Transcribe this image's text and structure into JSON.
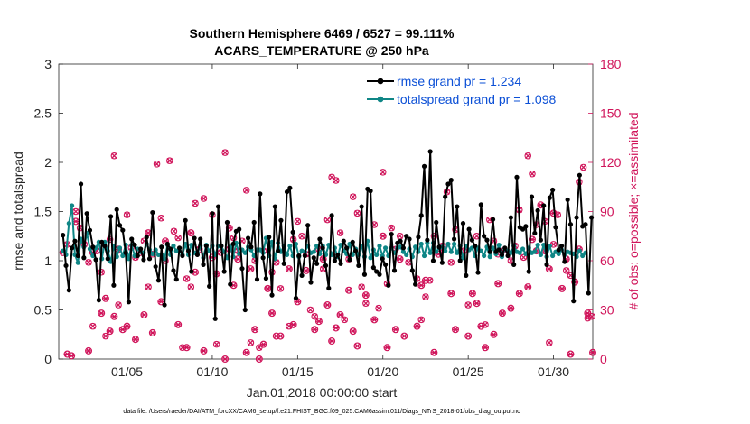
{
  "chart_data": {
    "type": "line",
    "title": [
      "Southern Hemisphere 6469 / 6527 = 99.111%",
      "ACARS_TEMPERATURE @ 250 hPa"
    ],
    "xlabel": "Jan.01,2018 00:00:00 start",
    "ylabel": "rmse and totalspread",
    "ylabel_right": "# of obs: o=possible; ×=assimilated",
    "footnote": "data file: /Users/raeder/DAI/ATM_forcXX/CAM6_setup/f.e21.FHIST_BGC.f09_025.CAM6assim.011/Diags_NTrS_2018-01/obs_diag_output.nc",
    "xlim": [
      1,
      32.3
    ],
    "ylim": [
      0,
      3
    ],
    "ylim_right": [
      0,
      180
    ],
    "xticks": [
      5,
      10,
      15,
      20,
      25,
      30
    ],
    "xtick_labels": [
      "01/05",
      "01/10",
      "01/15",
      "01/20",
      "01/25",
      "01/30"
    ],
    "yticks": [
      0,
      0.5,
      1,
      1.5,
      2,
      2.5,
      3
    ],
    "ytick_labels": [
      "0",
      "0.5",
      "1",
      "1.5",
      "2",
      "2.5",
      "3"
    ],
    "yticks_right": [
      0,
      30,
      60,
      90,
      120,
      150,
      180
    ],
    "ytick_labels_right": [
      "0",
      "30",
      "60",
      "90",
      "120",
      "150",
      "180"
    ],
    "legend": [
      "rmse grand pr = 1.234",
      "totalspread grand pr = 1.098"
    ],
    "legend_position": "top-right",
    "colors": {
      "rmse": "#000000",
      "spread": "#0f8686",
      "obs": "#d0145a",
      "legend_text": "#0b4fd6"
    },
    "rmse": [
      1.26,
      0.95,
      0.7,
      1.13,
      1.2,
      1.05,
      1.78,
      1.03,
      1.48,
      1.31,
      1.14,
      1.01,
      0.6,
      1.19,
      1.15,
      1.02,
      1.45,
      0.75,
      1.52,
      1.36,
      1.31,
      1.08,
      0.58,
      1.22,
      1.16,
      1.05,
      1.12,
      1.01,
      1.24,
      1.02,
      1.49,
      0.94,
      0.8,
      1.14,
      0.55,
      1.17,
      1.12,
      0.9,
      0.81,
      1.13,
      1.05,
      1.41,
      1.1,
      0.89,
      1.23,
      1.06,
      1.22,
      0.96,
      1.15,
      0.74,
      1.48,
      0.41,
      1.55,
      1.15,
      0.89,
      1.39,
      0.76,
      1.17,
      1.3,
      1.32,
      0.92,
      0.5,
      1.23,
      1.14,
      1.39,
      0.81,
      1.68,
      1.03,
      0.82,
      1.24,
      0.65,
      1.55,
      1.1,
      1.41,
      0.97,
      1.7,
      1.74,
      1.29,
      0.62,
      1.05,
      0.85,
      1.05,
      1.36,
      0.78,
      1.03,
      0.97,
      1.22,
      1.13,
      0.95,
      0.72,
      1.46,
      1.0,
      1.06,
      0.97,
      1.2,
      1.13,
      1.01,
      1.19,
      1.1,
      0.95,
      1.55,
      0.86,
      1.73,
      1.71,
      0.93,
      0.89,
      0.86,
      1.02,
      0.96,
      0.75,
      1.27,
      0.9,
      1.18,
      1.2,
      1.13,
      1.25,
      1.22,
      0.9,
      0.76,
      1.24,
      1.46,
      1.96,
      1.21,
      2.11,
      1.0,
      1.39,
      1.14,
      0.98,
      1.65,
      1.78,
      1.82,
      1.22,
      1.55,
      1.0,
      1.38,
      0.85,
      1.32,
      1.21,
      1.15,
      0.88,
      1.57,
      1.25,
      1.21,
      1.09,
      1.42,
      1.09,
      1.11,
      1.06,
      1.13,
      1.05,
      1.44,
      0.96,
      1.85,
      1.34,
      1.32,
      1.35,
      0.89,
      1.65,
      1.28,
      1.51,
      1.21,
      1.56,
      0.96,
      1.64,
      1.72,
      1.34,
      1.11,
      1.15,
      0.99,
      1.62,
      1.37,
      0.59,
      1.44,
      1.87,
      1.35,
      1.37,
      0.67,
      1.44
    ],
    "totalspread": [
      1.1,
      1.06,
      1.38,
      1.56,
      1.06,
      0.98,
      1.22,
      1.14,
      1.28,
      1.12,
      1.05,
      1.13,
      1.19,
      1.02,
      1.19,
      1.1,
      0.99,
      1.15,
      1.04,
      1.13,
      1.05,
      1.16,
      1.02,
      1.16,
      1.05,
      1.12,
      1.09,
      1.08,
      1.17,
      1.11,
      1.07,
      1.11,
      1.06,
      1.06,
      1.02,
      1.16,
      1.06,
      1.15,
      1.1,
      1.1,
      1.06,
      1.17,
      1.06,
      1.16,
      1.08,
      1.08,
      1.15,
      1.03,
      1.16,
      1.1,
      1.15,
      1.06,
      1.15,
      1.15,
      1.09,
      1.03,
      1.14,
      1.04,
      1.18,
      1.07,
      1.11,
      1.08,
      1.14,
      1.11,
      1.05,
      1.11,
      1.11,
      1.08,
      1.23,
      1.05,
      1.19,
      1.02,
      1.18,
      1.09,
      1.15,
      1.06,
      1.15,
      1.05,
      1.17,
      1.04,
      1.1,
      1.09,
      1.15,
      1.08,
      1.09,
      1.15,
      1.07,
      1.15,
      1.06,
      1.16,
      1.06,
      1.13,
      1.04,
      1.16,
      1.1,
      1.07,
      1.17,
      1.06,
      1.12,
      1.06,
      1.15,
      1.04,
      1.2,
      1.03,
      1.11,
      1.06,
      1.15,
      1.05,
      1.13,
      1.05,
      1.13,
      1.08,
      1.13,
      1.14,
      1.09,
      1.06,
      1.12,
      1.04,
      1.14,
      1.09,
      1.17,
      1.05,
      1.18,
      1.08,
      1.18,
      1.09,
      1.13,
      1.14,
      1.1,
      1.17,
      1.09,
      1.17,
      1.08,
      1.15,
      1.03,
      1.15,
      1.11,
      1.13,
      1.05,
      1.13,
      1.1,
      1.05,
      1.14,
      1.04,
      1.13,
      1.07,
      1.16,
      1.04,
      1.12,
      1.1,
      1.08,
      1.15,
      1.09,
      1.08,
      1.12,
      1.07,
      1.13,
      1.08,
      1.09,
      1.16,
      1.06,
      1.16,
      1.04,
      1.15,
      1.05,
      1.09,
      1.07,
      1.11,
      1.06,
      1.09,
      1.08,
      1.07,
      1.04,
      1.1,
      1.05,
      1.08
    ],
    "obs_points": [
      [
        1.25,
        65
      ],
      [
        1.5,
        3
      ],
      [
        1.75,
        2
      ],
      [
        2,
        84
      ],
      [
        2.75,
        5
      ],
      [
        3.0,
        65
      ],
      [
        3.5,
        28
      ],
      [
        3.75,
        37
      ],
      [
        4.0,
        17
      ],
      [
        4.25,
        26
      ],
      [
        4.5,
        67
      ],
      [
        4.75,
        18
      ],
      [
        5.0,
        20
      ],
      [
        5.5,
        12
      ],
      [
        5.75,
        65
      ],
      [
        6.0,
        27
      ],
      [
        6.25,
        77
      ],
      [
        6.5,
        16
      ],
      [
        7.0,
        35
      ],
      [
        7.25,
        72
      ],
      [
        8.0,
        21
      ],
      [
        8.5,
        7
      ],
      [
        8.75,
        77
      ],
      [
        9.0,
        53
      ],
      [
        9.5,
        5
      ],
      [
        10.0,
        62
      ],
      [
        10.25,
        52
      ],
      [
        10.75,
        0
      ],
      [
        11.0,
        80
      ],
      [
        11.25,
        45
      ],
      [
        11.5,
        61
      ],
      [
        12.0,
        4
      ],
      [
        12.25,
        55
      ],
      [
        12.5,
        18
      ],
      [
        12.75,
        0
      ],
      [
        13.0,
        9
      ],
      [
        13.25,
        43
      ],
      [
        13.5,
        28
      ],
      [
        13.75,
        14
      ],
      [
        14.0,
        14
      ],
      [
        14.5,
        55
      ],
      [
        14.75,
        21
      ],
      [
        15.0,
        35
      ],
      [
        15.5,
        54
      ],
      [
        16.0,
        18
      ],
      [
        16.25,
        23
      ],
      [
        16.5,
        61
      ],
      [
        16.75,
        33
      ],
      [
        17.0,
        11
      ],
      [
        17.25,
        19
      ],
      [
        17.5,
        27
      ],
      [
        18.0,
        42
      ],
      [
        18.25,
        17
      ],
      [
        18.5,
        8
      ],
      [
        19.0,
        39
      ],
      [
        19.5,
        24
      ],
      [
        20.0,
        75
      ],
      [
        20.25,
        7
      ],
      [
        20.75,
        18
      ],
      [
        21.0,
        61
      ],
      [
        21.25,
        14
      ],
      [
        22.0,
        20
      ],
      [
        22.25,
        45
      ],
      [
        22.5,
        48
      ],
      [
        23.0,
        4
      ],
      [
        23.25,
        64
      ],
      [
        23.5,
        67
      ],
      [
        24.0,
        40
      ],
      [
        24.25,
        18
      ],
      [
        25.0,
        14
      ],
      [
        25.25,
        40
      ],
      [
        25.5,
        34
      ],
      [
        25.75,
        20
      ],
      [
        26.0,
        7
      ],
      [
        26.5,
        15
      ],
      [
        26.75,
        46
      ],
      [
        27.0,
        28
      ],
      [
        27.5,
        31
      ],
      [
        28.0,
        40
      ],
      [
        28.5,
        44
      ],
      [
        28.75,
        73
      ],
      [
        29.0,
        66
      ],
      [
        29.25,
        94
      ],
      [
        29.5,
        66
      ],
      [
        29.75,
        55
      ],
      [
        30.0,
        89
      ],
      [
        30.5,
        43
      ],
      [
        30.75,
        61
      ],
      [
        31.0,
        3
      ],
      [
        31.25,
        47
      ],
      [
        31.5,
        67
      ],
      [
        32.0,
        28
      ],
      [
        32.3,
        4
      ]
    ],
    "obs_marked": [
      [
        1.5,
        70
      ],
      [
        2.0,
        90
      ],
      [
        2.25,
        80
      ],
      [
        2.5,
        70
      ],
      [
        2.75,
        59
      ],
      [
        3.0,
        20
      ],
      [
        3.25,
        66
      ],
      [
        3.5,
        53
      ],
      [
        3.75,
        14
      ],
      [
        4.0,
        73
      ],
      [
        4.25,
        124
      ],
      [
        4.5,
        33
      ],
      [
        5.0,
        88
      ],
      [
        5.25,
        68
      ],
      [
        5.5,
        62
      ],
      [
        6.0,
        72
      ],
      [
        6.25,
        44
      ],
      [
        6.5,
        64
      ],
      [
        6.75,
        119
      ],
      [
        7.0,
        86
      ],
      [
        7.25,
        60
      ],
      [
        7.5,
        121
      ],
      [
        7.75,
        78
      ],
      [
        8.0,
        74
      ],
      [
        8.25,
        7
      ],
      [
        8.5,
        49
      ],
      [
        8.75,
        44
      ],
      [
        9.0,
        95
      ],
      [
        9.25,
        67
      ],
      [
        9.5,
        98
      ],
      [
        10.0,
        88
      ],
      [
        10.25,
        9
      ],
      [
        10.5,
        65
      ],
      [
        10.75,
        126
      ],
      [
        11.0,
        67
      ],
      [
        11.25,
        74
      ],
      [
        11.5,
        66
      ],
      [
        11.75,
        72
      ],
      [
        12.0,
        103
      ],
      [
        12.25,
        10
      ],
      [
        12.5,
        60
      ],
      [
        12.75,
        7
      ],
      [
        13.0,
        66
      ],
      [
        13.25,
        43
      ],
      [
        13.5,
        53
      ],
      [
        13.75,
        59
      ],
      [
        14.0,
        43
      ],
      [
        14.5,
        20
      ],
      [
        14.75,
        73
      ],
      [
        15.0,
        84
      ],
      [
        15.25,
        75
      ],
      [
        15.5,
        64
      ],
      [
        15.75,
        30
      ],
      [
        16.0,
        26
      ],
      [
        16.25,
        67
      ],
      [
        16.5,
        55
      ],
      [
        16.75,
        85
      ],
      [
        17.0,
        111
      ],
      [
        17.25,
        109
      ],
      [
        17.5,
        77
      ],
      [
        17.75,
        24
      ],
      [
        18.0,
        61
      ],
      [
        18.25,
        99
      ],
      [
        18.5,
        89
      ],
      [
        18.75,
        44
      ],
      [
        19.0,
        34
      ],
      [
        19.5,
        82
      ],
      [
        19.75,
        31
      ],
      [
        20.0,
        114
      ],
      [
        20.25,
        46
      ],
      [
        20.5,
        80
      ],
      [
        20.75,
        67
      ],
      [
        21.0,
        75
      ],
      [
        21.5,
        59
      ],
      [
        22.0,
        49
      ],
      [
        22.25,
        24
      ],
      [
        22.5,
        38
      ],
      [
        22.75,
        48
      ],
      [
        23.0,
        75
      ],
      [
        23.5,
        69
      ],
      [
        23.75,
        102
      ],
      [
        24.0,
        59
      ],
      [
        24.25,
        79
      ],
      [
        24.75,
        66
      ],
      [
        25.0,
        33
      ],
      [
        25.5,
        75
      ],
      [
        26.0,
        21
      ],
      [
        26.25,
        85
      ],
      [
        26.5,
        72
      ],
      [
        26.75,
        64
      ],
      [
        27.0,
        66
      ],
      [
        27.5,
        60
      ],
      [
        27.75,
        69
      ],
      [
        28.0,
        91
      ],
      [
        28.25,
        62
      ],
      [
        28.5,
        124
      ],
      [
        28.75,
        113
      ],
      [
        29.0,
        82
      ],
      [
        29.5,
        84
      ],
      [
        29.75,
        10
      ],
      [
        30.0,
        70
      ],
      [
        30.25,
        88
      ],
      [
        30.75,
        54
      ],
      [
        31.0,
        51
      ],
      [
        31.5,
        108
      ],
      [
        31.75,
        117
      ],
      [
        32.0,
        25
      ],
      [
        32.25,
        26
      ]
    ]
  }
}
